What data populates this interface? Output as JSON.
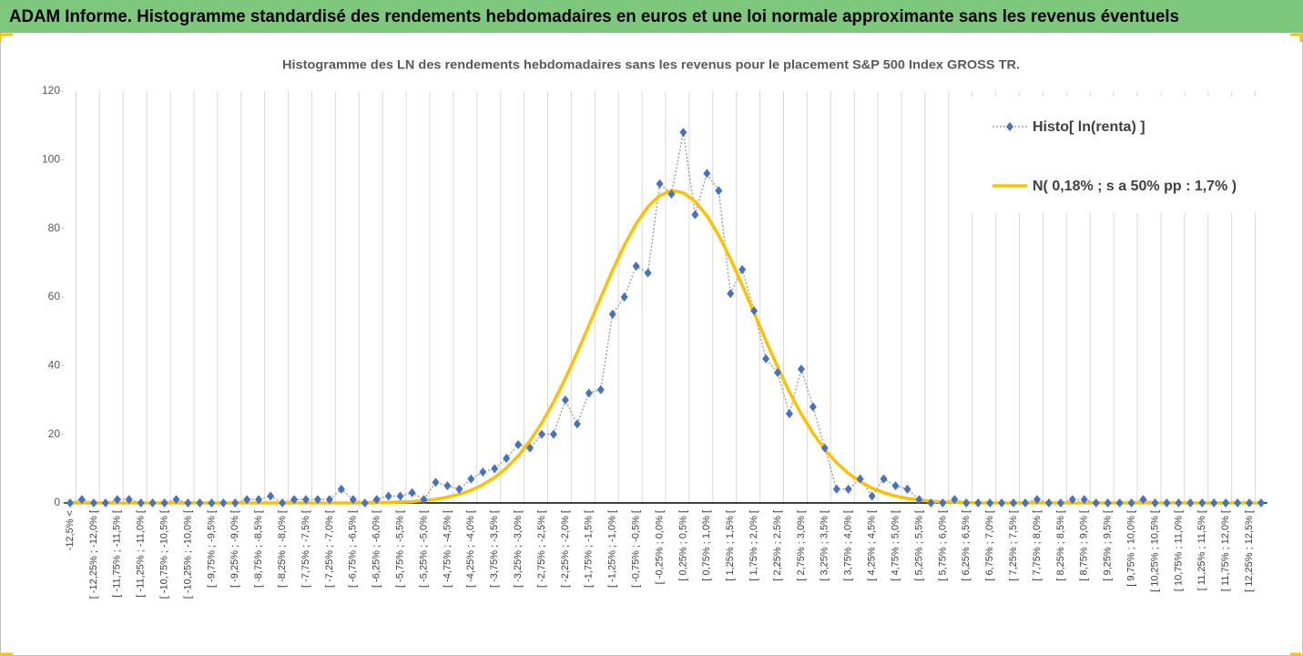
{
  "header": {
    "title": "ADAM Informe. Histogramme standardisé des rendements hebdomadaires en euros et une loi normale approximante sans les revenus éventuels"
  },
  "chart_data": {
    "type": "line",
    "title": "Histogramme des LN des rendements hebdomadaires sans les revenus pour le placement S&P 500 Index GROSS TR.",
    "categories": [
      "-12,5% <",
      null,
      "[ -12,25% ; -12,0% [",
      null,
      "[ -11,75% ; -11,5% [",
      null,
      "[ -11,25% ; -11,0% [",
      null,
      "[ -10,75% ; -10,5% [",
      null,
      "[ -10,25% ; -10,0% [",
      null,
      "[ -9,75% ; -9,5% [",
      null,
      "[ -9,25% ; -9,0% [",
      null,
      "[ -8,75% ; -8,5% [",
      null,
      "[ -8,25% ; -8,0% [",
      null,
      "[ -7,75% ; -7,5% [",
      null,
      "[ -7,25% ; -7,0% [",
      null,
      "[ -6,75% ; -6,5% [",
      null,
      "[ -6,25% ; -6,0% [",
      null,
      "[ -5,75% ; -5,5% [",
      null,
      "[ -5,25% ; -5,0% [",
      null,
      "[ -4,75% ; -4,5% [",
      null,
      "[ -4,25% ; -4,0% [",
      null,
      "[ -3,75% ; -3,5% [",
      null,
      "[ -3,25% ; -3,0% [",
      null,
      "[ -2,75% ; -2,5% [",
      null,
      "[ -2,25% ; -2,0% [",
      null,
      "[ -1,75% ; -1,5% [",
      null,
      "[ -1,25% ; -1,0% [",
      null,
      "[ -0,75% ; -0,5% [",
      null,
      "[ -0,25% ; 0,0% [",
      null,
      "[ 0,25% ; 0,5% [",
      null,
      "[ 0,75% ; 1,0% [",
      null,
      "[ 1,25% ; 1,5% [",
      null,
      "[ 1,75% ; 2,0% [",
      null,
      "[ 2,25% ; 2,5% [",
      null,
      "[ 2,75% ; 3,0% [",
      null,
      "[ 3,25% ; 3,5% [",
      null,
      "[ 3,75% ; 4,0% [",
      null,
      "[ 4,25% ; 4,5% [",
      null,
      "[ 4,75% ; 5,0% [",
      null,
      "[ 5,25% ; 5,5% [",
      null,
      "[ 5,75% ; 6,0% [",
      null,
      "[ 6,25% ; 6,5% [",
      null,
      "[ 6,75% ; 7,0% [",
      null,
      "[ 7,25% ; 7,5% [",
      null,
      "[ 7,75% ; 8,0% [",
      null,
      "[ 8,25% ; 8,5% [",
      null,
      "[ 8,75% ; 9,0% [",
      null,
      "[ 9,25% ; 9,5% [",
      null,
      "[ 9,75% ; 10,0% [",
      null,
      "[ 10,25% ; 10,5% [",
      null,
      "[ 10,75% ; 11,0% [",
      null,
      "[ 11,25% ; 11,5% [",
      null,
      "[ 11,75% ; 12,0% [",
      null,
      "[ 12,25% ; 12,5% [",
      null
    ],
    "series": [
      {
        "name": "Histo[ ln(renta) ]",
        "color": "#4472c4",
        "line_color": "#a5a5a5",
        "values": [
          0,
          1,
          0,
          0,
          1,
          1,
          0,
          0,
          0,
          1,
          0,
          0,
          0,
          0,
          0,
          1,
          1,
          2,
          0,
          1,
          1,
          1,
          1,
          4,
          1,
          0,
          1,
          2,
          2,
          3,
          1,
          6,
          5,
          4,
          7,
          9,
          10,
          13,
          17,
          16,
          20,
          20,
          30,
          23,
          32,
          33,
          55,
          60,
          69,
          67,
          93,
          90,
          108,
          84,
          96,
          91,
          61,
          68,
          56,
          42,
          38,
          26,
          39,
          28,
          16,
          4,
          4,
          7,
          2,
          7,
          5,
          4,
          1,
          0,
          0,
          1,
          0,
          0,
          0,
          0,
          0,
          0,
          1,
          0,
          0,
          1,
          1,
          0,
          0,
          0,
          0,
          1,
          0,
          0,
          0,
          0,
          0,
          0,
          0,
          0,
          0,
          0
        ]
      },
      {
        "name": "N( 0,18% ; s a 50% pp : 1,7% )",
        "color": "#ffc000",
        "values": [
          0,
          0,
          0,
          0,
          0,
          0,
          0,
          0,
          0,
          0,
          0,
          0,
          0,
          0,
          0,
          0,
          0,
          0,
          0,
          0,
          0,
          0,
          0,
          0,
          0,
          0,
          0.1,
          0.1,
          0.3,
          0.4,
          0.7,
          1.1,
          1.7,
          2.5,
          3.7,
          5.3,
          7.4,
          10.2,
          13.7,
          18.1,
          23.3,
          29.4,
          36.3,
          43.8,
          51.8,
          59.9,
          67.8,
          75.1,
          81.4,
          86.3,
          89.6,
          91,
          90.4,
          87.9,
          83.7,
          78,
          71.1,
          63.4,
          55.4,
          47.3,
          39.6,
          32.3,
          25.9,
          20.3,
          15.6,
          11.7,
          8.6,
          6.2,
          4.3,
          3,
          2,
          1.3,
          0.9,
          0.5,
          0.3,
          0.2,
          0.1,
          0,
          0,
          0,
          0,
          0,
          0,
          0,
          0,
          0,
          0,
          0,
          0,
          0,
          0,
          0,
          0,
          0,
          0,
          0,
          0,
          0,
          0,
          0,
          0,
          0
        ]
      }
    ],
    "ylim": [
      0,
      120
    ],
    "yticks": [
      0,
      20,
      40,
      60,
      80,
      100,
      120
    ],
    "vertical_grid": true,
    "legend": "upper right"
  }
}
